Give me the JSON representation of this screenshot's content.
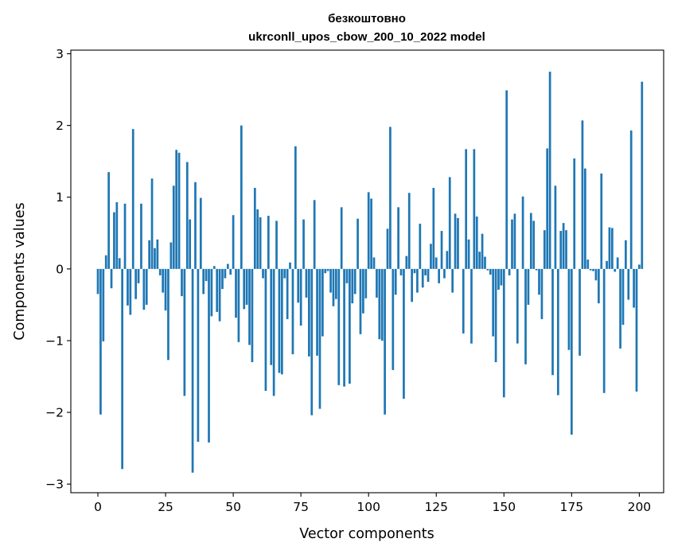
{
  "chart_data": {
    "type": "bar",
    "title_line1": "безкоштовно",
    "title_line2": "ukrconll_upos_cbow_200_10_2022 model",
    "xlabel": "Vector components",
    "ylabel": "Components values",
    "xlim": [
      -10,
      209
    ],
    "ylim": [
      -3.12,
      3.05
    ],
    "xticks": [
      0,
      25,
      50,
      75,
      100,
      125,
      150,
      175,
      200
    ],
    "yticks": [
      -3,
      -2,
      -1,
      0,
      1,
      2,
      3
    ],
    "ytick_labels": [
      "−3",
      "−2",
      "−1",
      "0",
      "1",
      "2",
      "3"
    ],
    "bar_color": "#1f77b4",
    "grid": false,
    "legend": "none",
    "values": [
      -0.35,
      -2.03,
      -1.01,
      0.19,
      1.35,
      -0.27,
      0.79,
      0.93,
      0.15,
      -2.79,
      0.91,
      -0.51,
      -0.64,
      1.95,
      -0.42,
      -0.2,
      0.91,
      -0.57,
      -0.5,
      0.4,
      1.26,
      0.29,
      0.41,
      -0.09,
      -0.33,
      -0.58,
      -1.27,
      0.37,
      1.16,
      1.66,
      1.62,
      -0.38,
      -1.77,
      1.49,
      0.69,
      -2.84,
      1.21,
      -2.41,
      0.99,
      -0.35,
      -0.17,
      -2.42,
      -0.66,
      0.04,
      -0.6,
      -0.73,
      -0.28,
      -0.13,
      0.07,
      -0.08,
      0.75,
      -0.68,
      -1.02,
      2.0,
      -0.56,
      -0.5,
      -1.06,
      -1.3,
      1.13,
      0.83,
      0.72,
      -0.13,
      -1.7,
      0.74,
      -1.34,
      -1.77,
      0.67,
      -1.45,
      -1.47,
      -0.13,
      -0.7,
      0.09,
      -1.19,
      1.71,
      -0.47,
      -0.79,
      0.69,
      -0.4,
      -1.22,
      -2.04,
      0.96,
      -1.21,
      -1.95,
      -0.94,
      -0.06,
      -0.03,
      -0.33,
      -0.52,
      -0.42,
      -1.62,
      0.86,
      -1.64,
      -0.2,
      -1.6,
      -0.48,
      -0.35,
      0.7,
      -0.91,
      -0.62,
      -0.41,
      1.07,
      0.98,
      0.16,
      -0.4,
      -0.98,
      -1.0,
      -2.03,
      0.56,
      1.98,
      -1.41,
      -0.36,
      0.86,
      -0.09,
      -1.81,
      0.18,
      1.06,
      -0.46,
      -0.06,
      -0.33,
      0.63,
      -0.26,
      -0.09,
      -0.18,
      0.35,
      1.13,
      0.16,
      -0.2,
      0.53,
      -0.13,
      0.25,
      1.28,
      -0.33,
      0.77,
      0.71,
      0.0,
      -0.9,
      1.67,
      0.41,
      -1.04,
      1.67,
      0.73,
      0.24,
      0.49,
      0.17,
      -0.02,
      -0.08,
      -0.94,
      -1.3,
      -0.29,
      -0.23,
      -1.79,
      2.49,
      -0.09,
      0.69,
      0.77,
      -1.04,
      0.0,
      1.01,
      -1.33,
      -0.5,
      0.78,
      0.67,
      -0.02,
      -0.36,
      -0.7,
      0.54,
      1.68,
      2.75,
      -1.48,
      1.16,
      -1.76,
      0.53,
      0.64,
      0.54,
      -1.13,
      -2.31,
      1.54,
      0.0,
      -1.21,
      2.07,
      1.4,
      0.13,
      -0.02,
      -0.03,
      -0.16,
      -0.48,
      1.33,
      -1.73,
      0.11,
      0.58,
      0.57,
      -0.04,
      0.16,
      -1.11,
      -0.78,
      0.4,
      -0.43,
      1.93,
      -0.54,
      -1.71,
      0.06,
      2.61
    ]
  }
}
